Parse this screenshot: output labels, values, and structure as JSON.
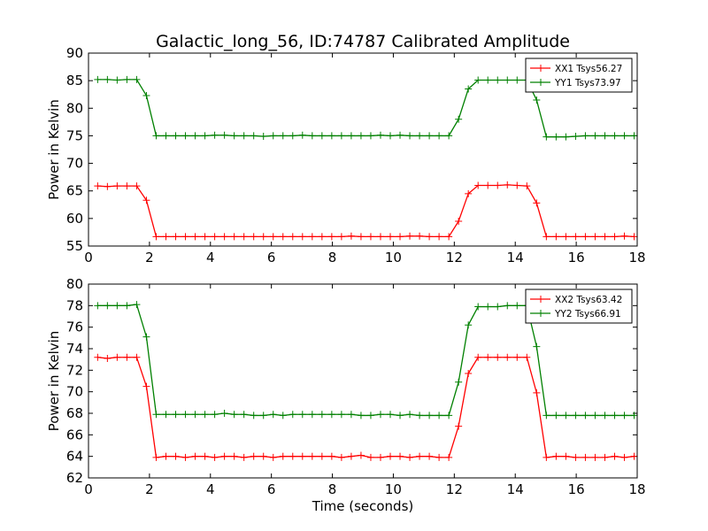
{
  "title": "Galactic_long_56, ID:74787 Calibrated Amplitude",
  "chart_data": [
    {
      "type": "line",
      "title": "Galactic_long_56, ID:74787 Calibrated Amplitude",
      "xlabel": "",
      "ylabel": "Power in Kelvin",
      "xlim": [
        0,
        18
      ],
      "ylim": [
        55,
        90
      ],
      "x_ticks": [
        "0",
        "2",
        "4",
        "6",
        "8",
        "10",
        "12",
        "14",
        "16",
        "18"
      ],
      "y_ticks": [
        "55",
        "60",
        "65",
        "70",
        "75",
        "80",
        "85",
        "90"
      ],
      "legend_position": "top-right",
      "grid": false,
      "x": [
        0.3,
        0.62,
        0.94,
        1.26,
        1.58,
        1.9,
        2.22,
        2.54,
        2.86,
        3.18,
        3.5,
        3.82,
        4.14,
        4.46,
        4.78,
        5.1,
        5.42,
        5.74,
        6.06,
        6.38,
        6.7,
        7.02,
        7.34,
        7.66,
        7.98,
        8.3,
        8.62,
        8.94,
        9.26,
        9.58,
        9.9,
        10.22,
        10.54,
        10.86,
        11.18,
        11.5,
        11.82,
        12.14,
        12.46,
        12.78,
        13.1,
        13.42,
        13.74,
        14.06,
        14.38,
        14.7,
        15.02,
        15.34,
        15.66,
        15.98,
        16.3,
        16.62,
        16.94,
        17.26,
        17.58,
        17.9
      ],
      "series": [
        {
          "name": "XX1 Tsys56.27",
          "color": "#ff0000",
          "values": [
            65.9,
            65.8,
            65.9,
            65.9,
            65.9,
            63.3,
            56.7,
            56.7,
            56.7,
            56.7,
            56.7,
            56.7,
            56.7,
            56.7,
            56.7,
            56.7,
            56.7,
            56.7,
            56.7,
            56.7,
            56.7,
            56.7,
            56.7,
            56.7,
            56.7,
            56.7,
            56.8,
            56.7,
            56.7,
            56.7,
            56.7,
            56.7,
            56.8,
            56.8,
            56.7,
            56.7,
            56.7,
            59.5,
            64.5,
            66.0,
            66.0,
            66.0,
            66.1,
            66.0,
            65.9,
            62.8,
            56.7,
            56.7,
            56.7,
            56.7,
            56.7,
            56.7,
            56.7,
            56.7,
            56.8,
            56.7
          ]
        },
        {
          "name": "YY1 Tsys73.97",
          "color": "#008000",
          "values": [
            85.2,
            85.2,
            85.1,
            85.2,
            85.2,
            82.3,
            75.0,
            75.0,
            75.0,
            75.0,
            75.0,
            75.0,
            75.1,
            75.1,
            75.0,
            75.0,
            75.0,
            74.9,
            75.0,
            75.0,
            75.0,
            75.1,
            75.0,
            75.0,
            75.0,
            75.0,
            75.0,
            75.0,
            75.0,
            75.1,
            75.0,
            75.1,
            75.0,
            75.0,
            75.0,
            75.0,
            75.0,
            78.0,
            83.5,
            85.1,
            85.1,
            85.1,
            85.1,
            85.1,
            85.1,
            81.5,
            74.8,
            74.8,
            74.8,
            74.9,
            75.0,
            75.0,
            75.0,
            75.0,
            75.0,
            75.0
          ]
        }
      ]
    },
    {
      "type": "line",
      "title": "",
      "xlabel": "Time (seconds)",
      "ylabel": "Power in Kelvin",
      "xlim": [
        0,
        18
      ],
      "ylim": [
        62,
        80
      ],
      "x_ticks": [
        "0",
        "2",
        "4",
        "6",
        "8",
        "10",
        "12",
        "14",
        "16",
        "18"
      ],
      "y_ticks": [
        "62",
        "64",
        "66",
        "68",
        "70",
        "72",
        "74",
        "76",
        "78",
        "80"
      ],
      "legend_position": "top-right",
      "grid": false,
      "x": [
        0.3,
        0.62,
        0.94,
        1.26,
        1.58,
        1.9,
        2.22,
        2.54,
        2.86,
        3.18,
        3.5,
        3.82,
        4.14,
        4.46,
        4.78,
        5.1,
        5.42,
        5.74,
        6.06,
        6.38,
        6.7,
        7.02,
        7.34,
        7.66,
        7.98,
        8.3,
        8.62,
        8.94,
        9.26,
        9.58,
        9.9,
        10.22,
        10.54,
        10.86,
        11.18,
        11.5,
        11.82,
        12.14,
        12.46,
        12.78,
        13.1,
        13.42,
        13.74,
        14.06,
        14.38,
        14.7,
        15.02,
        15.34,
        15.66,
        15.98,
        16.3,
        16.62,
        16.94,
        17.26,
        17.58,
        17.9
      ],
      "series": [
        {
          "name": "XX2 Tsys63.42",
          "color": "#ff0000",
          "values": [
            73.2,
            73.1,
            73.2,
            73.2,
            73.2,
            70.5,
            63.9,
            64.0,
            64.0,
            63.9,
            64.0,
            64.0,
            63.9,
            64.0,
            64.0,
            63.9,
            64.0,
            64.0,
            63.9,
            64.0,
            64.0,
            64.0,
            64.0,
            64.0,
            64.0,
            63.9,
            64.0,
            64.1,
            63.9,
            63.9,
            64.0,
            64.0,
            63.9,
            64.0,
            64.0,
            63.9,
            63.9,
            66.8,
            71.7,
            73.2,
            73.2,
            73.2,
            73.2,
            73.2,
            73.2,
            69.9,
            63.9,
            64.0,
            64.0,
            63.9,
            63.9,
            63.9,
            63.9,
            64.0,
            63.9,
            64.0
          ]
        },
        {
          "name": "YY2 Tsys66.91",
          "color": "#008000",
          "values": [
            78.0,
            78.0,
            78.0,
            78.0,
            78.1,
            75.1,
            67.9,
            67.9,
            67.9,
            67.9,
            67.9,
            67.9,
            67.9,
            68.0,
            67.9,
            67.9,
            67.8,
            67.8,
            67.9,
            67.8,
            67.9,
            67.9,
            67.9,
            67.9,
            67.9,
            67.9,
            67.9,
            67.8,
            67.8,
            67.9,
            67.9,
            67.8,
            67.9,
            67.8,
            67.8,
            67.8,
            67.8,
            70.9,
            76.2,
            77.9,
            77.9,
            77.9,
            78.0,
            78.0,
            78.0,
            74.2,
            67.8,
            67.8,
            67.8,
            67.8,
            67.8,
            67.8,
            67.8,
            67.8,
            67.8,
            67.8
          ]
        }
      ]
    }
  ]
}
